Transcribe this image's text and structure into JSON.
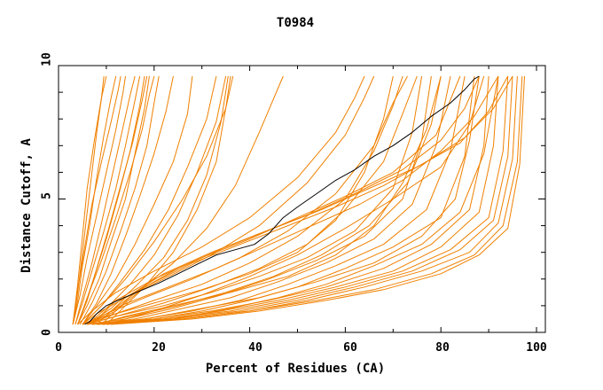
{
  "chart_data": {
    "type": "line",
    "title": "T0984",
    "xlabel": "Percent of Residues (CA)",
    "ylabel": "Distance Cutoff, A",
    "xlim": [
      0,
      100
    ],
    "ylim": [
      0,
      10
    ],
    "xticks": [
      "0",
      "20",
      "40",
      "60",
      "80",
      "100"
    ],
    "yticks": [
      "0",
      "5",
      "10"
    ],
    "highlight_color": "#000000",
    "series_color": "#f08000",
    "highlight": {
      "name": "highlighted model",
      "x": [
        5.5,
        6.5,
        8,
        10,
        13,
        17,
        21,
        25,
        29,
        33,
        37,
        41,
        44,
        47,
        50,
        54,
        58,
        62,
        66,
        70,
        74,
        78,
        82,
        85,
        87,
        88
      ],
      "y": [
        0.3,
        0.4,
        0.7,
        1.0,
        1.25,
        1.55,
        1.85,
        2.2,
        2.55,
        2.9,
        3.1,
        3.3,
        3.7,
        4.3,
        4.7,
        5.2,
        5.7,
        6.1,
        6.6,
        7.0,
        7.5,
        8.1,
        8.6,
        9.1,
        9.5,
        9.6
      ]
    },
    "series": [
      {
        "name": "m01",
        "x": [
          3,
          4,
          5,
          6,
          7,
          8,
          9,
          10
        ],
        "y": [
          0.3,
          1.5,
          3,
          4.5,
          6,
          7.5,
          8.8,
          9.6
        ]
      },
      {
        "name": "m02",
        "x": [
          3,
          4,
          5,
          6.5,
          8,
          9.5,
          11,
          12
        ],
        "y": [
          0.3,
          1.2,
          2.5,
          4,
          5.8,
          7.4,
          8.8,
          9.6
        ]
      },
      {
        "name": "m03",
        "x": [
          3,
          4.5,
          6,
          8,
          10,
          12,
          13.5,
          14
        ],
        "y": [
          0.3,
          1.4,
          2.8,
          4.4,
          6,
          7.6,
          9,
          9.6
        ]
      },
      {
        "name": "m04",
        "x": [
          3.5,
          5,
          7,
          9,
          11,
          13,
          15,
          16
        ],
        "y": [
          0.3,
          1.3,
          2.6,
          4.1,
          5.7,
          7.3,
          8.9,
          9.6
        ]
      },
      {
        "name": "m05",
        "x": [
          3.5,
          5,
          7,
          9.5,
          12,
          14,
          16,
          17
        ],
        "y": [
          0.3,
          1.1,
          2.3,
          3.8,
          5.4,
          7,
          8.7,
          9.6
        ]
      },
      {
        "name": "m06",
        "x": [
          4,
          5.5,
          7.5,
          10,
          12.5,
          15,
          17,
          18
        ],
        "y": [
          0.3,
          1.0,
          2.1,
          3.5,
          5.1,
          6.8,
          8.5,
          9.6
        ]
      },
      {
        "name": "m07",
        "x": [
          3,
          4,
          5.5,
          7,
          9,
          11,
          12.5,
          13
        ],
        "y": [
          0.3,
          1.6,
          3.2,
          4.8,
          6.4,
          7.9,
          9.1,
          9.6
        ]
      },
      {
        "name": "m08",
        "x": [
          4,
          6,
          8,
          10.5,
          13,
          15.5,
          17.5,
          18.5
        ],
        "y": [
          0.3,
          1.2,
          2.4,
          3.9,
          5.5,
          7.1,
          8.7,
          9.6
        ]
      },
      {
        "name": "m09",
        "x": [
          4,
          6,
          8.5,
          11,
          14,
          16,
          18,
          19
        ],
        "y": [
          0.3,
          1.0,
          2.0,
          3.4,
          5.0,
          6.7,
          8.4,
          9.6
        ]
      },
      {
        "name": "m10",
        "x": [
          3,
          4,
          5,
          6,
          7.5,
          9,
          9.5
        ],
        "y": [
          0.3,
          1.8,
          3.6,
          5.4,
          7.2,
          8.8,
          9.6
        ]
      },
      {
        "name": "m11",
        "x": [
          4.5,
          7,
          10,
          13,
          16,
          18.5,
          20,
          21
        ],
        "y": [
          0.3,
          1.1,
          2.3,
          3.8,
          5.4,
          7.0,
          8.6,
          9.6
        ]
      },
      {
        "name": "m12",
        "x": [
          5,
          8,
          11,
          14,
          17,
          20,
          22.5,
          24
        ],
        "y": [
          0.3,
          1.1,
          2.2,
          3.6,
          5.1,
          6.7,
          8.3,
          9.6
        ]
      },
      {
        "name": "m13",
        "x": [
          5,
          8,
          12,
          16,
          20,
          24,
          27,
          28
        ],
        "y": [
          0.3,
          1.0,
          2.0,
          3.3,
          4.8,
          6.4,
          8.2,
          9.6
        ]
      },
      {
        "name": "m14",
        "x": [
          5,
          9,
          13,
          18,
          23,
          27,
          31,
          33
        ],
        "y": [
          0.3,
          1.0,
          1.9,
          3.1,
          4.6,
          6.2,
          8.0,
          9.6
        ]
      },
      {
        "name": "m15",
        "x": [
          6,
          10,
          15,
          20,
          25,
          29,
          33,
          35
        ],
        "y": [
          0.3,
          0.9,
          1.8,
          2.9,
          4.4,
          6.0,
          7.9,
          9.6
        ]
      },
      {
        "name": "m16",
        "x": [
          6,
          11,
          16,
          22,
          27,
          31,
          34,
          35.5
        ],
        "y": [
          0.3,
          0.9,
          1.7,
          2.8,
          4.2,
          5.9,
          7.9,
          9.6
        ]
      },
      {
        "name": "m17",
        "x": [
          5,
          9,
          14,
          20,
          26,
          31,
          35,
          36
        ],
        "y": [
          0.3,
          1.0,
          2.0,
          3.4,
          5.0,
          6.6,
          8.4,
          9.6
        ]
      },
      {
        "name": "m18",
        "x": [
          6,
          12,
          18,
          24,
          29,
          33,
          35,
          36.5
        ],
        "y": [
          0.3,
          0.8,
          1.7,
          3.0,
          4.6,
          6.4,
          8.4,
          9.6
        ]
      },
      {
        "name": "m19",
        "x": [
          6,
          11,
          17,
          24,
          31,
          37,
          42,
          47
        ],
        "y": [
          0.3,
          0.8,
          1.6,
          2.6,
          3.9,
          5.5,
          7.5,
          9.6
        ]
      },
      {
        "name": "m20",
        "x": [
          4,
          6,
          9,
          12,
          15,
          17.5,
          19,
          20
        ],
        "y": [
          0.3,
          1.3,
          2.7,
          4.3,
          6.0,
          7.6,
          8.9,
          9.6
        ]
      },
      {
        "name": "m21",
        "x": [
          5,
          10,
          20,
          30,
          40,
          50,
          58,
          64,
          68,
          70
        ],
        "y": [
          0.3,
          0.6,
          1.1,
          1.6,
          2.2,
          3.0,
          4.2,
          6.0,
          8.0,
          9.6
        ]
      },
      {
        "name": "m22",
        "x": [
          6,
          12,
          22,
          32,
          42,
          52,
          62,
          70,
          74,
          76
        ],
        "y": [
          0.3,
          0.6,
          1.0,
          1.5,
          2.1,
          2.8,
          3.8,
          5.4,
          7.5,
          9.6
        ]
      },
      {
        "name": "m23",
        "x": [
          6,
          14,
          24,
          34,
          44,
          54,
          64,
          72,
          76,
          78
        ],
        "y": [
          0.3,
          0.5,
          0.9,
          1.4,
          2.0,
          2.7,
          3.6,
          5.0,
          7.2,
          9.6
        ]
      },
      {
        "name": "m24",
        "x": [
          7,
          16,
          26,
          36,
          46,
          56,
          66,
          74,
          79,
          82
        ],
        "y": [
          0.3,
          0.5,
          0.9,
          1.3,
          1.9,
          2.6,
          3.5,
          4.8,
          7.0,
          9.6
        ]
      },
      {
        "name": "m25",
        "x": [
          7,
          18,
          28,
          38,
          48,
          58,
          68,
          77,
          82,
          85
        ],
        "y": [
          0.3,
          0.5,
          0.8,
          1.2,
          1.8,
          2.5,
          3.3,
          4.6,
          6.8,
          9.6
        ]
      },
      {
        "name": "m26",
        "x": [
          8,
          20,
          30,
          40,
          50,
          60,
          70,
          80,
          85,
          87
        ],
        "y": [
          0.3,
          0.5,
          0.8,
          1.2,
          1.7,
          2.4,
          3.2,
          4.3,
          6.6,
          9.6
        ]
      },
      {
        "name": "m27",
        "x": [
          8,
          20,
          32,
          44,
          56,
          68,
          78,
          86,
          89,
          90
        ],
        "y": [
          0.3,
          0.5,
          0.8,
          1.2,
          1.7,
          2.4,
          3.3,
          4.6,
          7.0,
          9.6
        ]
      },
      {
        "name": "m28",
        "x": [
          8,
          22,
          34,
          46,
          58,
          70,
          80,
          88,
          91,
          92
        ],
        "y": [
          0.3,
          0.5,
          0.8,
          1.2,
          1.7,
          2.3,
          3.2,
          4.5,
          7.0,
          9.6
        ]
      },
      {
        "name": "m29",
        "x": [
          9,
          22,
          36,
          48,
          60,
          72,
          82,
          90,
          93,
          94
        ],
        "y": [
          0.3,
          0.5,
          0.8,
          1.2,
          1.7,
          2.3,
          3.1,
          4.3,
          6.8,
          9.6
        ]
      },
      {
        "name": "m30",
        "x": [
          9,
          24,
          38,
          50,
          62,
          74,
          84,
          91,
          94,
          95
        ],
        "y": [
          0.3,
          0.5,
          0.8,
          1.2,
          1.7,
          2.3,
          3.1,
          4.2,
          6.6,
          9.6
        ]
      },
      {
        "name": "m31",
        "x": [
          10,
          26,
          40,
          52,
          64,
          76,
          86,
          92,
          95,
          96
        ],
        "y": [
          0.3,
          0.5,
          0.8,
          1.2,
          1.7,
          2.3,
          3.0,
          4.1,
          6.5,
          9.6
        ]
      },
      {
        "name": "m32",
        "x": [
          10,
          26,
          40,
          54,
          66,
          78,
          87,
          93,
          96,
          97
        ],
        "y": [
          0.3,
          0.5,
          0.8,
          1.2,
          1.6,
          2.2,
          2.9,
          4.0,
          6.4,
          9.6
        ]
      },
      {
        "name": "m33",
        "x": [
          11,
          28,
          42,
          56,
          68,
          80,
          88,
          94,
          96.5,
          97.5
        ],
        "y": [
          0.3,
          0.5,
          0.8,
          1.2,
          1.6,
          2.2,
          2.9,
          3.9,
          6.3,
          9.6
        ]
      },
      {
        "name": "m34",
        "x": [
          9,
          24,
          36,
          46,
          56,
          66,
          76,
          84,
          89,
          92
        ],
        "y": [
          0.3,
          0.5,
          0.9,
          1.3,
          1.8,
          2.5,
          3.3,
          4.5,
          6.7,
          9.6
        ]
      },
      {
        "name": "m35",
        "x": [
          7,
          15,
          25,
          35,
          45,
          55,
          65,
          73,
          78,
          80
        ],
        "y": [
          0.3,
          0.6,
          1.0,
          1.5,
          2.1,
          2.9,
          4.0,
          5.6,
          7.8,
          9.6
        ]
      },
      {
        "name": "m36",
        "x": [
          6,
          12,
          20,
          30,
          40,
          50,
          60,
          66,
          70,
          72
        ],
        "y": [
          0.3,
          0.7,
          1.2,
          1.8,
          2.6,
          3.6,
          5.0,
          6.8,
          8.5,
          9.6
        ]
      },
      {
        "name": "m37",
        "x": [
          5,
          8,
          14,
          22,
          32,
          42,
          52,
          60,
          64,
          66
        ],
        "y": [
          0.3,
          0.7,
          1.3,
          2.0,
          2.9,
          4.0,
          5.6,
          7.4,
          8.8,
          9.6
        ]
      },
      {
        "name": "m38",
        "x": [
          4,
          7,
          12,
          20,
          30,
          40,
          50,
          58,
          62,
          64
        ],
        "y": [
          0.3,
          0.8,
          1.5,
          2.3,
          3.2,
          4.3,
          5.8,
          7.5,
          8.8,
          9.6
        ]
      },
      {
        "name": "m39",
        "x": [
          5,
          10,
          18,
          28,
          38,
          48,
          58,
          66,
          70,
          73
        ],
        "y": [
          0.3,
          0.7,
          1.3,
          2.0,
          2.8,
          3.8,
          5.2,
          7.0,
          8.6,
          9.6
        ]
      },
      {
        "name": "m40",
        "x": [
          6,
          12,
          22,
          32,
          42,
          52,
          60,
          68,
          72,
          75
        ],
        "y": [
          0.3,
          0.6,
          1.1,
          1.7,
          2.4,
          3.3,
          4.6,
          6.4,
          8.2,
          9.6
        ]
      },
      {
        "name": "m41",
        "x": [
          8,
          14,
          24,
          36,
          48,
          58,
          66,
          72,
          77,
          80
        ],
        "y": [
          0.3,
          0.6,
          1.0,
          1.5,
          2.1,
          2.9,
          4.0,
          5.6,
          7.6,
          9.6
        ]
      },
      {
        "name": "m42",
        "x": [
          8,
          18,
          30,
          42,
          54,
          66,
          76,
          83,
          86,
          88
        ],
        "y": [
          0.3,
          0.5,
          0.9,
          1.3,
          1.9,
          2.6,
          3.6,
          5.0,
          7.2,
          9.6
        ]
      },
      {
        "name": "m43",
        "x": [
          10,
          20,
          30,
          40,
          50,
          60,
          70,
          80,
          86,
          89
        ],
        "y": [
          0.3,
          0.8,
          1.4,
          2.1,
          2.9,
          3.9,
          5.0,
          6.2,
          7.8,
          9.6
        ]
      },
      {
        "name": "m44",
        "x": [
          7,
          12,
          20,
          30,
          40,
          50,
          60,
          70,
          79,
          84
        ],
        "y": [
          0.3,
          1.2,
          2.0,
          2.8,
          3.5,
          4.3,
          5.1,
          6.0,
          7.4,
          9.6
        ]
      },
      {
        "name": "m45",
        "x": [
          8,
          14,
          22,
          32,
          42,
          52,
          62,
          72,
          80,
          85,
          88
        ],
        "y": [
          0.3,
          1.3,
          2.2,
          3.0,
          3.7,
          4.4,
          5.2,
          6.1,
          7.2,
          8.4,
          9.6
        ]
      },
      {
        "name": "m46",
        "x": [
          9,
          16,
          25,
          35,
          45,
          55,
          65,
          75,
          84,
          90,
          94
        ],
        "y": [
          0.3,
          1.5,
          2.4,
          3.2,
          3.9,
          4.6,
          5.4,
          6.2,
          7.1,
          8.3,
          9.6
        ]
      },
      {
        "name": "m47",
        "x": [
          10,
          18,
          28,
          38,
          48,
          58,
          68,
          77,
          85,
          91,
          95
        ],
        "y": [
          0.3,
          1.7,
          2.6,
          3.3,
          4.0,
          4.7,
          5.5,
          6.4,
          7.3,
          8.4,
          9.6
        ]
      },
      {
        "name": "m48",
        "x": [
          6,
          13,
          23,
          33,
          43,
          53,
          63,
          72,
          80,
          87,
          92
        ],
        "y": [
          0.3,
          1.0,
          1.7,
          2.4,
          3.2,
          4.0,
          4.8,
          5.7,
          6.8,
          8.1,
          9.6
        ]
      }
    ]
  }
}
